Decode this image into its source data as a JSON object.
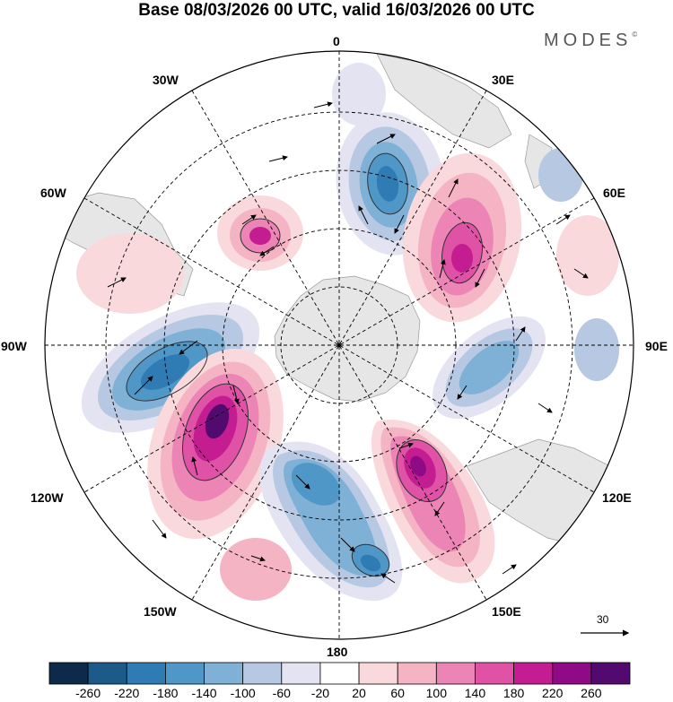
{
  "title": "Base 08/03/2026 00 UTC, valid 16/03/2026 00 UTC",
  "brand": "MODES",
  "brand_mark": "©",
  "longitude_labels": {
    "0": "0",
    "30E": "30E",
    "60E": "60E",
    "90E": "90E",
    "120E": "120E",
    "150E": "150E",
    "180": "180",
    "150W": "150W",
    "120W": "120W",
    "90W": "90W",
    "60W": "60W",
    "30W": "30W"
  },
  "colorbar": {
    "labels": [
      "-260",
      "-220",
      "-180",
      "-140",
      "-100",
      "-60",
      "-20",
      "20",
      "60",
      "100",
      "140",
      "180",
      "220",
      "260"
    ],
    "colors": [
      "#0d2a4a",
      "#1c5a8a",
      "#2f7bb4",
      "#4f97c7",
      "#7fb0d6",
      "#b6c8e2",
      "#e3e3f1",
      "#ffffff",
      "#f9d9dc",
      "#f4b4c4",
      "#ec85b5",
      "#e052a6",
      "#c41d92",
      "#8f0a86",
      "#520a6e"
    ]
  },
  "reference_vector": "30",
  "anomaly_centers": [
    {
      "name": "low-lobe-n",
      "value": -160
    },
    {
      "name": "high-lobe-ne",
      "value": 200
    },
    {
      "name": "high-small-nw",
      "value": 200
    },
    {
      "name": "low-w",
      "value": -200
    },
    {
      "name": "high-sw",
      "value": 260
    },
    {
      "name": "low-s",
      "value": -180
    },
    {
      "name": "high-se",
      "value": 240
    },
    {
      "name": "low-e",
      "value": -140
    }
  ]
}
